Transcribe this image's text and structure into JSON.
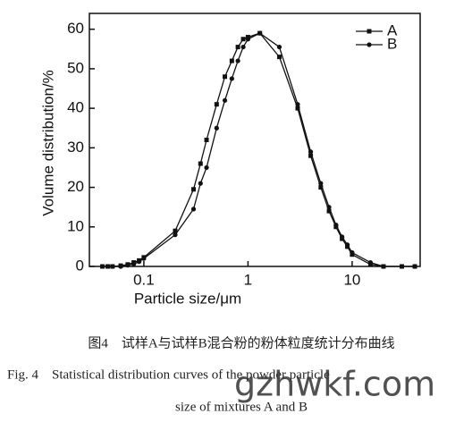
{
  "chart_data": {
    "type": "line",
    "x_label": "Particle size/μm",
    "y_label": "Volume distribution/%",
    "x": [
      0.04,
      0.045,
      0.05,
      0.06,
      0.07,
      0.08,
      0.09,
      0.1,
      0.2,
      0.3,
      0.35,
      0.4,
      0.5,
      0.6,
      0.7,
      0.8,
      0.9,
      1.0,
      1.3,
      2,
      3,
      4,
      5,
      6,
      7,
      8,
      9,
      10,
      15,
      20,
      30,
      40
    ],
    "series": [
      {
        "name": "A",
        "color": "#111111",
        "marker": "square",
        "values": [
          0,
          0,
          0,
          0.2,
          0.5,
          1,
          1.5,
          2.3,
          9,
          19.5,
          26,
          32,
          41,
          48,
          52,
          55.5,
          57.5,
          58,
          59,
          53,
          40,
          28,
          20,
          14,
          10,
          7,
          5,
          3,
          0.5,
          0,
          0,
          0
        ]
      },
      {
        "name": "B",
        "color": "#111111",
        "marker": "circle",
        "values": [
          0,
          0,
          0,
          0,
          0.3,
          0.6,
          1.2,
          2,
          8,
          14.5,
          21,
          25,
          35,
          42,
          47.5,
          52,
          55.5,
          57.5,
          59,
          55.5,
          41,
          29,
          21,
          15,
          10.5,
          7.5,
          5.5,
          3.5,
          1,
          0,
          0,
          0
        ]
      }
    ],
    "xlim": [
      0.03,
      45
    ],
    "xlog": true,
    "xticks": [
      0.1,
      1,
      10
    ],
    "ylim": [
      0,
      64
    ],
    "yticks": [
      0,
      10,
      20,
      30,
      40,
      50,
      60
    ],
    "legend": "upper right",
    "caption_cn": "图4　试样A与试样B混合粉的粉体粒度统计分布曲线",
    "caption_en_1": "Fig. 4　Statistical distribution curves of the powder particle",
    "caption_en_2": "size of mixtures A and B",
    "watermark": "gzhwkf.com"
  }
}
